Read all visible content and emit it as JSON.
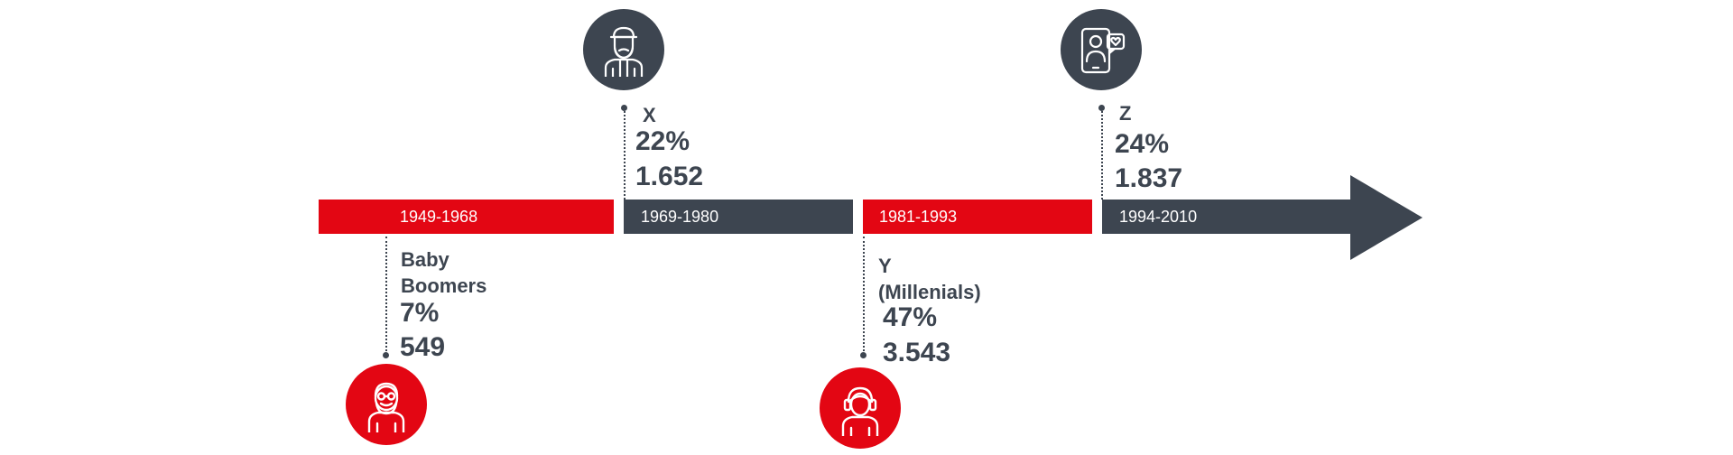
{
  "timeline": {
    "periods": [
      {
        "label": "1949-1968",
        "color": "#e30613"
      },
      {
        "label": "1969-1980",
        "color": "#3d4550"
      },
      {
        "label": "1981-1993",
        "color": "#e30613"
      },
      {
        "label": "1994-2010",
        "color": "#3d4550"
      }
    ]
  },
  "generations": [
    {
      "name_line1": "Baby",
      "name_line2": "Boomers",
      "percent": "7%",
      "count": "549",
      "icon": "elderly-person-icon",
      "color": "#e30613"
    },
    {
      "name": "X",
      "percent": "22%",
      "count": "1.652",
      "icon": "bearded-man-icon",
      "color": "#3d4550"
    },
    {
      "name_line1": "Y",
      "name_line2": "(Millenials)",
      "percent": "47%",
      "count": "3.543",
      "icon": "headset-person-icon",
      "color": "#e30613"
    },
    {
      "name": "Z",
      "percent": "24%",
      "count": "1.837",
      "icon": "smartphone-person-icon",
      "color": "#3d4550"
    }
  ]
}
